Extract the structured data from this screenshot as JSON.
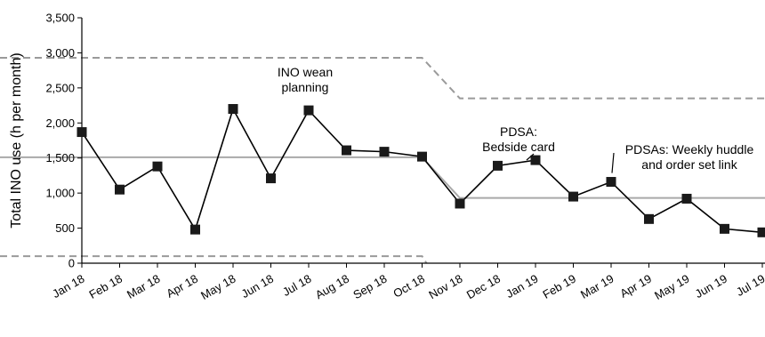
{
  "chart_data": {
    "type": "line",
    "ylabel": "Total INO use (h per month)",
    "xlabel": "",
    "ylim": [
      0,
      3500
    ],
    "yticks": [
      0,
      500,
      1000,
      1500,
      2000,
      2500,
      3000,
      3500
    ],
    "ytick_labels": [
      "0",
      "500",
      "1,000",
      "1,500",
      "2,000",
      "2,500",
      "3,000",
      "3,500"
    ],
    "categories": [
      "Jan 18",
      "Feb 18",
      "Mar 18",
      "Apr 18",
      "May 18",
      "Jun 18",
      "Jul 18",
      "Aug 18",
      "Sep 18",
      "Oct 18",
      "Nov 18",
      "Dec 18",
      "Jan 19",
      "Feb 19",
      "Mar 19",
      "Apr 19",
      "May 19",
      "Jun 19",
      "Jul 19"
    ],
    "series": [
      {
        "values": [
          1870,
          1050,
          1380,
          480,
          2200,
          1210,
          2180,
          1610,
          1590,
          1520,
          850,
          1390,
          1470,
          950,
          1160,
          630,
          920,
          490,
          440
        ]
      }
    ],
    "center_line": {
      "segments": [
        {
          "from": "Jan 18",
          "to": "Oct 18",
          "value": 1510
        },
        {
          "from": "Nov 18",
          "to": "Jul 19",
          "value": 930
        }
      ]
    },
    "upper_control_limit": {
      "segments": [
        {
          "from": "Jan 18",
          "to": "Oct 18",
          "value": 2930
        },
        {
          "from": "Nov 18",
          "to": "Jul 19",
          "value": 2350
        }
      ]
    },
    "lower_control_limit": {
      "segments": [
        {
          "from": "Jan 18",
          "to": "Oct 18",
          "value": 100
        }
      ]
    },
    "annotations": [
      {
        "lines": [
          "INO wean",
          "planning"
        ],
        "point": "Jul 18"
      },
      {
        "lines": [
          "PDSA:",
          "Bedside card"
        ],
        "point": "Jan 19"
      },
      {
        "lines": [
          "PDSAs: Weekly huddle",
          "and order set link"
        ],
        "point": "Mar 19"
      }
    ],
    "grid": false
  }
}
